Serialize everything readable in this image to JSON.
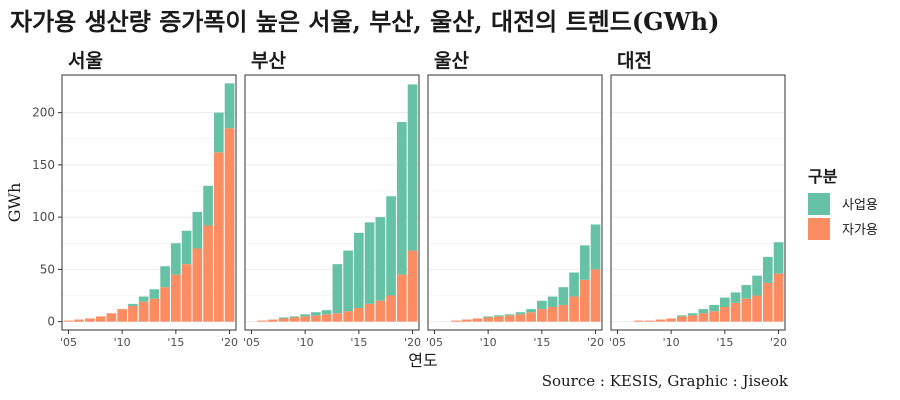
{
  "title": "자가용 생산량 증가폭이 높은 서울, 부산, 울산, 대전의 트렌드(GWh)",
  "caption": "Source : KESIS, Graphic : Jiseok",
  "colors": {
    "business": "#66C2A5",
    "self": "#FC8D62",
    "panel_bg": "#ffffff",
    "grid": "#EBEBEB",
    "border": "#333333"
  },
  "chart_data": {
    "type": "bar",
    "stacked": true,
    "facets": [
      "서울",
      "부산",
      "울산",
      "대전"
    ],
    "x": [
      2005,
      2006,
      2007,
      2008,
      2009,
      2010,
      2011,
      2012,
      2013,
      2014,
      2015,
      2016,
      2017,
      2018,
      2019,
      2020
    ],
    "x_tick_labels": [
      "'05",
      "'10",
      "'15",
      "'20"
    ],
    "x_tick_values": [
      2005,
      2010,
      2015,
      2020
    ],
    "xlabel": "연도",
    "ylabel": "GWh",
    "ylim": [
      -8,
      236
    ],
    "y_ticks": [
      0,
      50,
      100,
      150,
      200
    ],
    "grid": true,
    "legend": {
      "title": "구분",
      "position": "right",
      "entries": [
        "사업용",
        "자가용"
      ]
    },
    "panels": [
      {
        "name": "서울",
        "series": [
          {
            "name": "자가용",
            "values": [
              1,
              2,
              3,
              5,
              8,
              12,
              15,
              19,
              22,
              33,
              45,
              55,
              70,
              92,
              162,
              185
            ]
          },
          {
            "name": "사업용",
            "values": [
              0,
              0,
              0,
              0,
              0,
              0,
              2,
              5,
              9,
              20,
              30,
              32,
              35,
              38,
              38,
              43
            ]
          }
        ]
      },
      {
        "name": "부산",
        "series": [
          {
            "name": "자가용",
            "values": [
              0,
              1,
              2,
              3,
              4,
              5,
              6,
              7,
              8,
              10,
              13,
              17,
              20,
              25,
              45,
              68
            ]
          },
          {
            "name": "사업용",
            "values": [
              0,
              0,
              0,
              1,
              1,
              2,
              3,
              4,
              47,
              58,
              72,
              78,
              80,
              95,
              146,
              159
            ]
          }
        ]
      },
      {
        "name": "울산",
        "series": [
          {
            "name": "자가용",
            "values": [
              0,
              0,
              1,
              2,
              3,
              4,
              5,
              6,
              7,
              9,
              12,
              14,
              16,
              24,
              40,
              50
            ]
          },
          {
            "name": "사업용",
            "values": [
              0,
              0,
              0,
              0,
              0,
              1,
              1,
              1,
              2,
              3,
              8,
              10,
              17,
              23,
              33,
              43
            ]
          }
        ]
      },
      {
        "name": "대전",
        "series": [
          {
            "name": "자가용",
            "values": [
              0,
              0,
              1,
              1,
              2,
              3,
              5,
              6,
              8,
              10,
              14,
              18,
              22,
              25,
              37,
              46
            ]
          },
          {
            "name": "사업용",
            "values": [
              0,
              0,
              0,
              0,
              0,
              0,
              1,
              2,
              4,
              6,
              9,
              10,
              13,
              19,
              25,
              30
            ]
          }
        ]
      }
    ]
  }
}
